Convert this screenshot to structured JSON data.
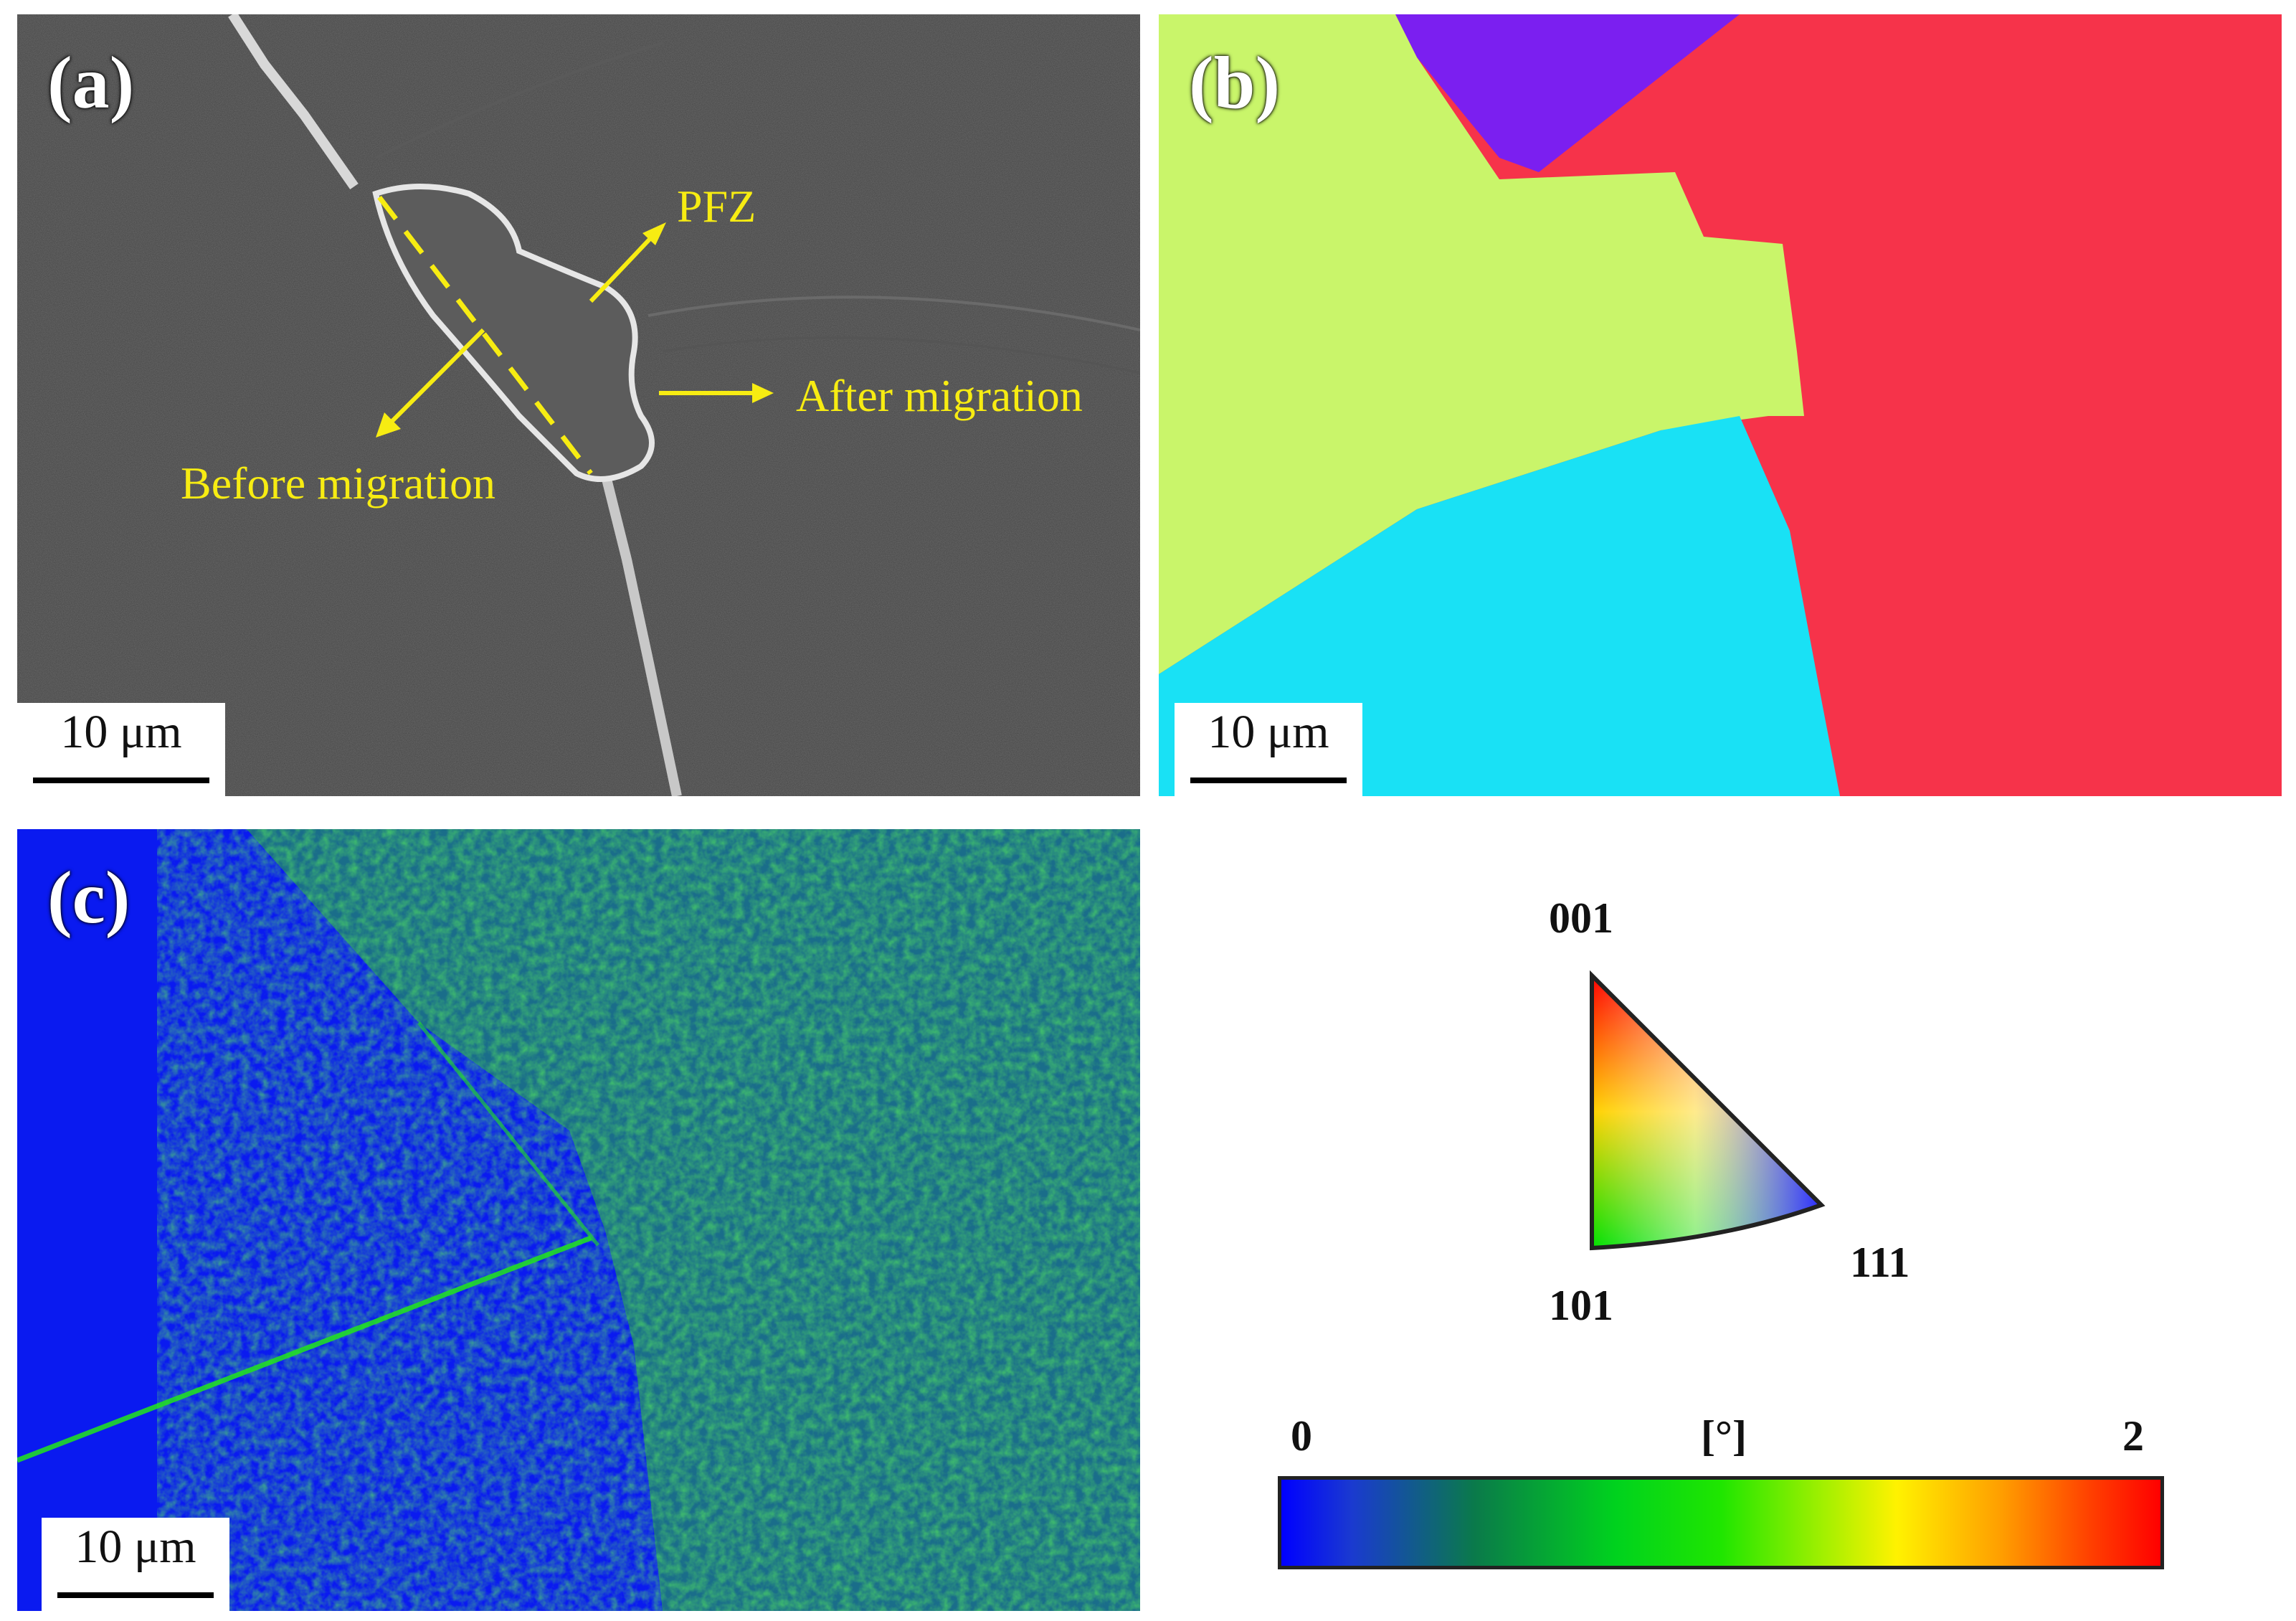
{
  "panels": {
    "a": {
      "label": "(a)",
      "scale_bar": "10 μm",
      "annotations": {
        "pfz": "PFZ",
        "after": "After migration",
        "before": "Before migration"
      }
    },
    "b": {
      "label": "(b)",
      "scale_bar": "10 μm",
      "grain_colors": [
        "#c9f56a",
        "#7b1ff0",
        "#f6334a",
        "#19e1f5"
      ]
    },
    "c": {
      "label": "(c)",
      "scale_bar": "10 μm",
      "map_colors": [
        "#0a1af0",
        "#1ab42a",
        "#22e61c"
      ]
    }
  },
  "ipf_legend": {
    "top": "001",
    "bottom_left": "101",
    "bottom_right": "111"
  },
  "kam_colorbar": {
    "min": "0",
    "unit": "[°]",
    "max": "2"
  }
}
